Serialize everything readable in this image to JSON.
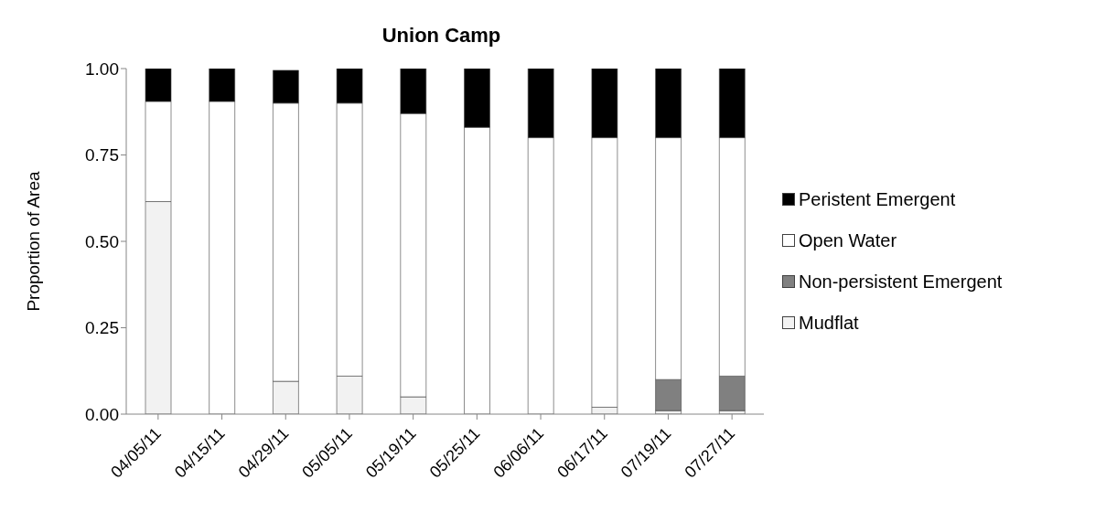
{
  "chart_data": {
    "type": "bar",
    "title": "Union Camp",
    "ylabel": "Proportion of Area",
    "stacked": true,
    "categories": [
      "04/05/11",
      "04/15/11",
      "04/29/11",
      "05/05/11",
      "05/19/11",
      "05/25/11",
      "06/06/11",
      "06/17/11",
      "07/19/11",
      "07/27/11"
    ],
    "series": [
      {
        "name": "Mudflat",
        "color": "#f2f2f2",
        "values": [
          0.615,
          0,
          0.095,
          0.11,
          0.05,
          0,
          0,
          0.02,
          0.01,
          0.01
        ]
      },
      {
        "name": "Non-persistent Emergent",
        "color": "#808080",
        "values": [
          0,
          0,
          0,
          0,
          0,
          0,
          0,
          0,
          0.09,
          0.1
        ]
      },
      {
        "name": "Open Water",
        "color": "#ffffff",
        "values": [
          0.29,
          0.905,
          0.805,
          0.79,
          0.82,
          0.83,
          0.8,
          0.78,
          0.7,
          0.69
        ]
      },
      {
        "name": "Peristent Emergent",
        "color": "#000000",
        "values": [
          0.095,
          0.095,
          0.095,
          0.1,
          0.13,
          0.17,
          0.2,
          0.2,
          0.2,
          0.2
        ]
      }
    ],
    "ylim": [
      0,
      1
    ],
    "yticks": [
      {
        "value": 0,
        "label": "0.00"
      },
      {
        "value": 0.25,
        "label": "0.25"
      },
      {
        "value": 0.5,
        "label": "0.50"
      },
      {
        "value": 0.75,
        "label": "0.75"
      },
      {
        "value": 1,
        "label": "1.00"
      }
    ],
    "grid": false,
    "legend": "right"
  }
}
